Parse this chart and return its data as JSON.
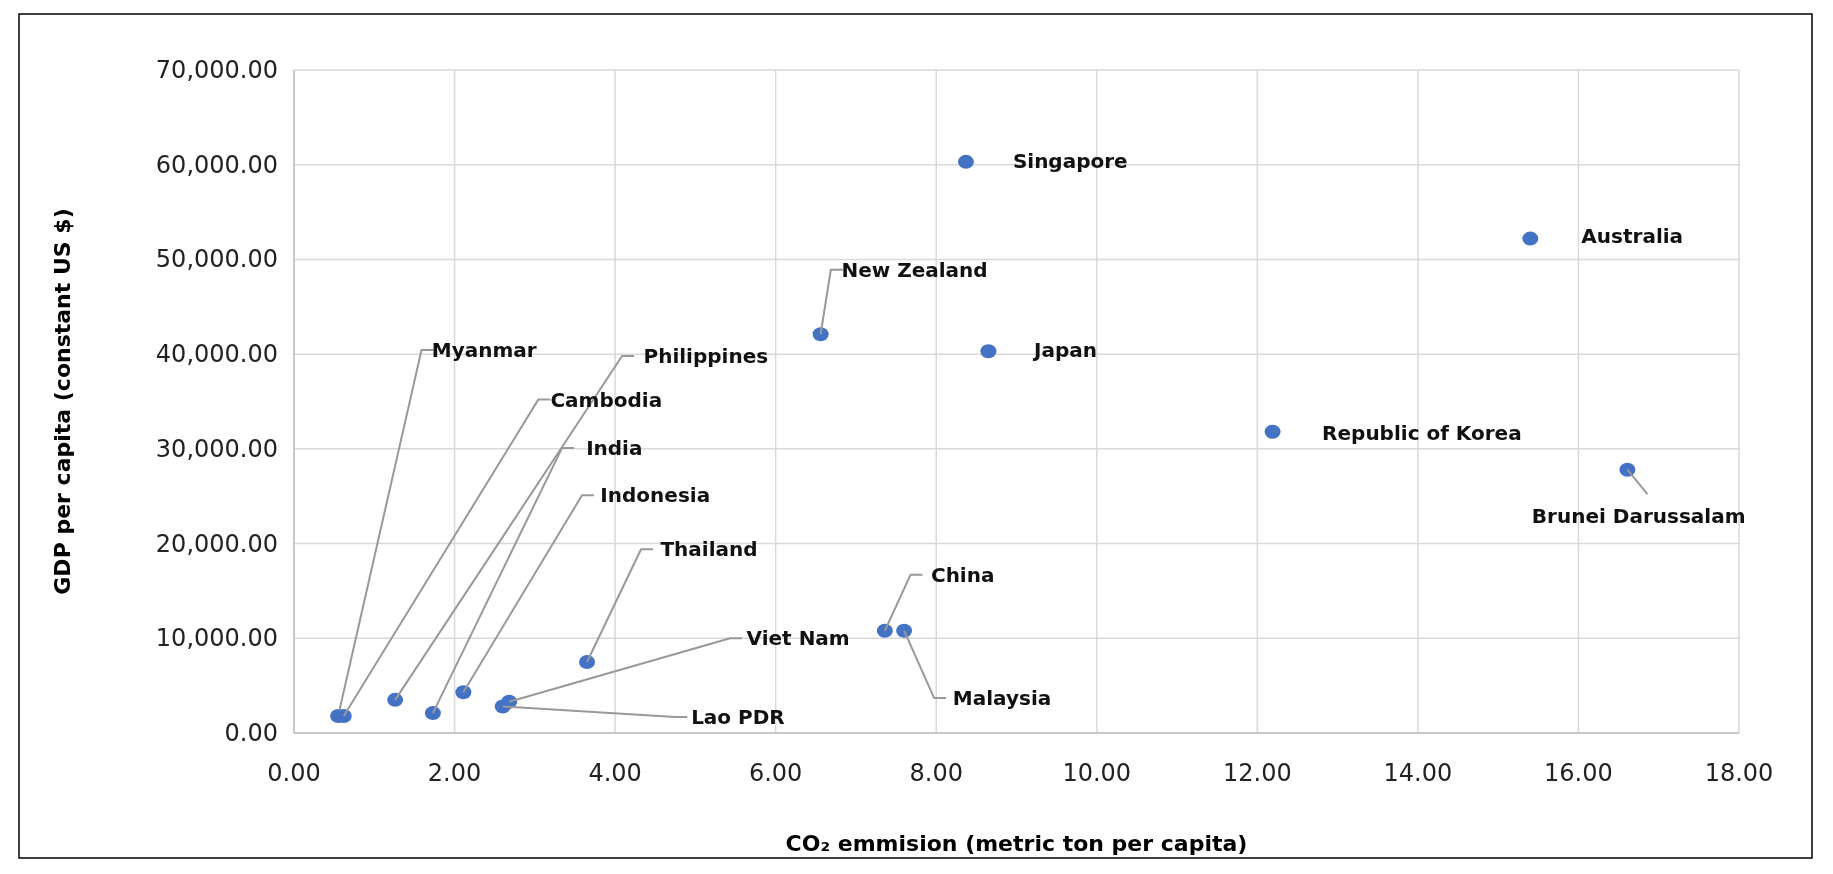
{
  "chart_data": {
    "type": "scatter",
    "xlabel": "CO₂ emmision (metric ton per capita)",
    "ylabel": "GDP per capita (constant US $)",
    "xlim": [
      0,
      18
    ],
    "ylim": [
      0,
      70000
    ],
    "xticks": [
      {
        "value": 0,
        "label": "0.00"
      },
      {
        "value": 2,
        "label": "2.00"
      },
      {
        "value": 4,
        "label": "4.00"
      },
      {
        "value": 6,
        "label": "6.00"
      },
      {
        "value": 8,
        "label": "8.00"
      },
      {
        "value": 10,
        "label": "10.00"
      },
      {
        "value": 12,
        "label": "12.00"
      },
      {
        "value": 14,
        "label": "14.00"
      },
      {
        "value": 16,
        "label": "16.00"
      },
      {
        "value": 18,
        "label": "18.00"
      }
    ],
    "yticks": [
      {
        "value": 0,
        "label": "0.00"
      },
      {
        "value": 10000,
        "label": "10,000.00"
      },
      {
        "value": 20000,
        "label": "20,000.00"
      },
      {
        "value": 30000,
        "label": "30,000.00"
      },
      {
        "value": 40000,
        "label": "40,000.00"
      },
      {
        "value": 50000,
        "label": "50,000.00"
      },
      {
        "value": 60000,
        "label": "60,000.00"
      },
      {
        "value": 70000,
        "label": "70,000.00"
      }
    ],
    "grid": true,
    "marker": "circle",
    "series": [
      {
        "name": "Myanmar",
        "color": "#4472c4",
        "x": [
          0.55
        ],
        "values": [
          1800
        ]
      },
      {
        "name": "Philippines",
        "color": "#4472c4",
        "x": [
          1.26
        ],
        "values": [
          3500
        ]
      },
      {
        "name": "Cambodia",
        "color": "#4472c4",
        "x": [
          0.62
        ],
        "values": [
          1800
        ]
      },
      {
        "name": "India",
        "color": "#4472c4",
        "x": [
          1.73
        ],
        "values": [
          2100
        ]
      },
      {
        "name": "Indonesia",
        "color": "#4472c4",
        "x": [
          2.11
        ],
        "values": [
          4300
        ]
      },
      {
        "name": "Thailand",
        "color": "#4472c4",
        "x": [
          3.65
        ],
        "values": [
          7500
        ]
      },
      {
        "name": "Viet Nam",
        "color": "#4472c4",
        "x": [
          2.68
        ],
        "values": [
          3300
        ]
      },
      {
        "name": "Lao PDR",
        "color": "#4472c4",
        "x": [
          2.6
        ],
        "values": [
          2800
        ]
      },
      {
        "name": "China",
        "color": "#4472c4",
        "x": [
          7.36
        ],
        "values": [
          10800
        ]
      },
      {
        "name": "Malaysia",
        "color": "#4472c4",
        "x": [
          7.6
        ],
        "values": [
          10800
        ]
      },
      {
        "name": "Singapore",
        "color": "#4472c4",
        "x": [
          8.37
        ],
        "values": [
          60300
        ]
      },
      {
        "name": "New Zealand",
        "color": "#4472c4",
        "x": [
          6.56
        ],
        "values": [
          42100
        ]
      },
      {
        "name": "Japan",
        "color": "#4472c4",
        "x": [
          8.65
        ],
        "values": [
          40300
        ]
      },
      {
        "name": "Australia",
        "color": "#4472c4",
        "x": [
          15.4
        ],
        "values": [
          52200
        ]
      },
      {
        "name": "Republic of Korea",
        "color": "#4472c4",
        "x": [
          12.19
        ],
        "values": [
          31800
        ]
      },
      {
        "name": "Brunei Darussalam",
        "color": "#4472c4",
        "x": [
          16.61
        ],
        "values": [
          27800
        ]
      }
    ]
  }
}
